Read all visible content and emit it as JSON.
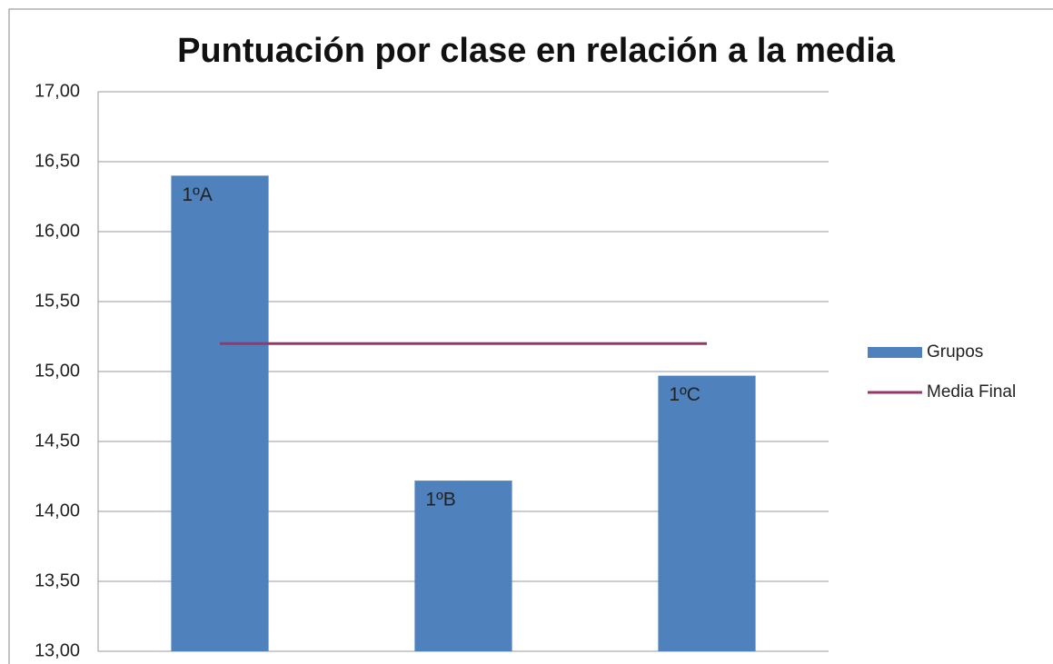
{
  "chart_data": {
    "type": "bar",
    "title": "Puntuación por clase en relación a la media",
    "categories": [
      "1ºA",
      "1ºB",
      "1ºC"
    ],
    "series": [
      {
        "name": "Grupos",
        "type": "bar",
        "color": "#4f81bd",
        "values": [
          16.4,
          14.22,
          14.97
        ]
      },
      {
        "name": "Media Final",
        "type": "line",
        "color": "#953869",
        "values": [
          15.2,
          15.2,
          15.2
        ]
      }
    ],
    "ylim": [
      13,
      17
    ],
    "yticks": [
      {
        "value": 13,
        "label": "13,00"
      },
      {
        "value": 13.5,
        "label": "13,50"
      },
      {
        "value": 14,
        "label": "14,00"
      },
      {
        "value": 14.5,
        "label": "14,50"
      },
      {
        "value": 15,
        "label": "15,00"
      },
      {
        "value": 15.5,
        "label": "15,50"
      },
      {
        "value": 16,
        "label": "16,00"
      },
      {
        "value": 16.5,
        "label": "16,50"
      },
      {
        "value": 17,
        "label": "17,00"
      }
    ],
    "grid": true,
    "legend": "right"
  }
}
